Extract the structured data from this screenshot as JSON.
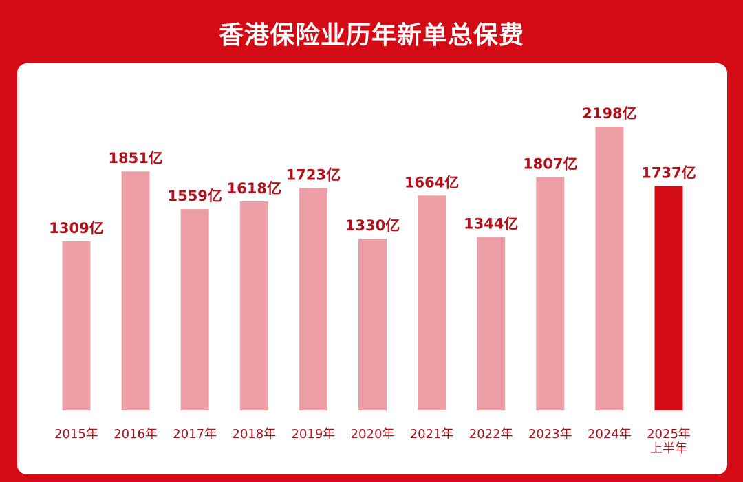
{
  "title": "香港保险业历年新单总保费",
  "colors": {
    "background": "#d40a14",
    "panel": "#ffffff",
    "bar": "#ee9ea5",
    "bar_highlight": "#d40a14",
    "label_text": "#b01019",
    "title_text": "#ffffff"
  },
  "chart_data": {
    "type": "bar",
    "title": "香港保险业历年新单总保费",
    "xlabel": "",
    "ylabel": "",
    "categories": [
      "2015年",
      "2016年",
      "2017年",
      "2018年",
      "2019年",
      "2020年",
      "2021年",
      "2022年",
      "2023年",
      "2024年",
      "2025年\n上半年"
    ],
    "values": [
      1309,
      1851,
      1559,
      1618,
      1723,
      1330,
      1664,
      1344,
      1807,
      2198,
      1737
    ],
    "value_labels": [
      "1309亿",
      "1851亿",
      "1559亿",
      "1618亿",
      "1723亿",
      "1330亿",
      "1664亿",
      "1344亿",
      "1807亿",
      "2198亿",
      "1737亿"
    ],
    "highlight_index": 10,
    "unit": "亿",
    "ylim": [
      0,
      2198
    ],
    "grid": false,
    "legend": "none"
  }
}
